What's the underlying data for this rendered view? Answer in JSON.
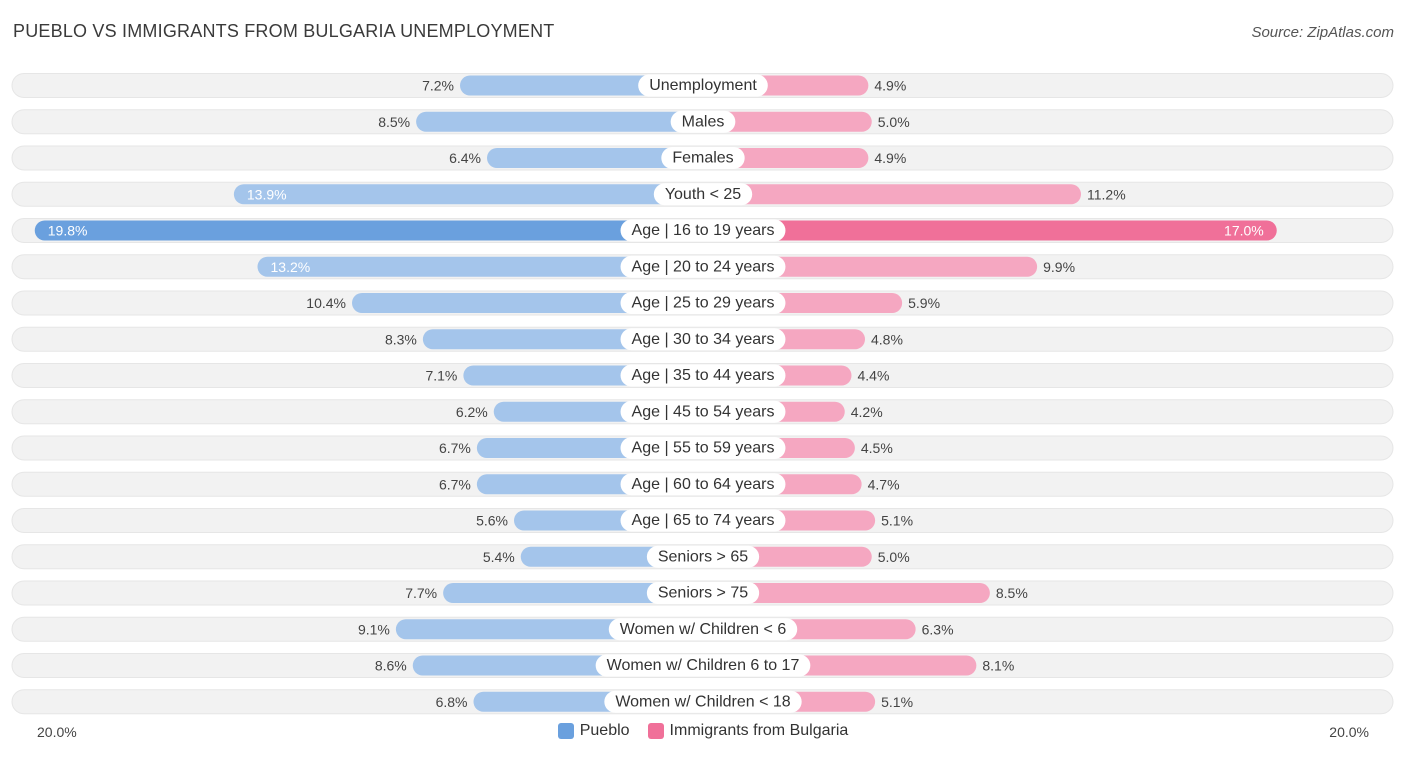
{
  "title": "PUEBLO VS IMMIGRANTS FROM BULGARIA UNEMPLOYMENT",
  "source": "Source: ZipAtlas.com",
  "colors": {
    "left_light": "#a4c5eb",
    "left_strong": "#6aa0de",
    "right_light": "#f5a7c1",
    "right_strong": "#f07099",
    "row_bg": "#f2f2f2"
  },
  "chart_data": {
    "type": "bar",
    "orientation": "horizontal-diverging",
    "xlim": [
      0,
      20
    ],
    "axis_min_label": "20.0%",
    "axis_max_label": "20.0%",
    "legend_placement": "bottom-center",
    "categories": [
      "Unemployment",
      "Males",
      "Females",
      "Youth < 25",
      "Age | 16 to 19 years",
      "Age | 20 to 24 years",
      "Age | 25 to 29 years",
      "Age | 30 to 34 years",
      "Age | 35 to 44 years",
      "Age | 45 to 54 years",
      "Age | 55 to 59 years",
      "Age | 60 to 64 years",
      "Age | 65 to 74 years",
      "Seniors > 65",
      "Seniors > 75",
      "Women w/ Children < 6",
      "Women w/ Children 6 to 17",
      "Women w/ Children < 18"
    ],
    "series": [
      {
        "name": "Pueblo",
        "values": [
          7.2,
          8.5,
          6.4,
          13.9,
          19.8,
          13.2,
          10.4,
          8.3,
          7.1,
          6.2,
          6.7,
          6.7,
          5.6,
          5.4,
          7.7,
          9.1,
          8.6,
          6.8
        ],
        "labels": [
          "7.2%",
          "8.5%",
          "6.4%",
          "13.9%",
          "19.8%",
          "13.2%",
          "10.4%",
          "8.3%",
          "7.1%",
          "6.2%",
          "6.7%",
          "6.7%",
          "5.6%",
          "5.4%",
          "7.7%",
          "9.1%",
          "8.6%",
          "6.8%"
        ]
      },
      {
        "name": "Immigrants from Bulgaria",
        "values": [
          4.9,
          5.0,
          4.9,
          11.2,
          17.0,
          9.9,
          5.9,
          4.8,
          4.4,
          4.2,
          4.5,
          4.7,
          5.1,
          5.0,
          8.5,
          6.3,
          8.1,
          5.1
        ],
        "labels": [
          "4.9%",
          "5.0%",
          "4.9%",
          "11.2%",
          "17.0%",
          "9.9%",
          "5.9%",
          "4.8%",
          "4.4%",
          "4.2%",
          "4.5%",
          "4.7%",
          "5.1%",
          "5.0%",
          "8.5%",
          "6.3%",
          "8.1%",
          "5.1%"
        ]
      }
    ]
  }
}
